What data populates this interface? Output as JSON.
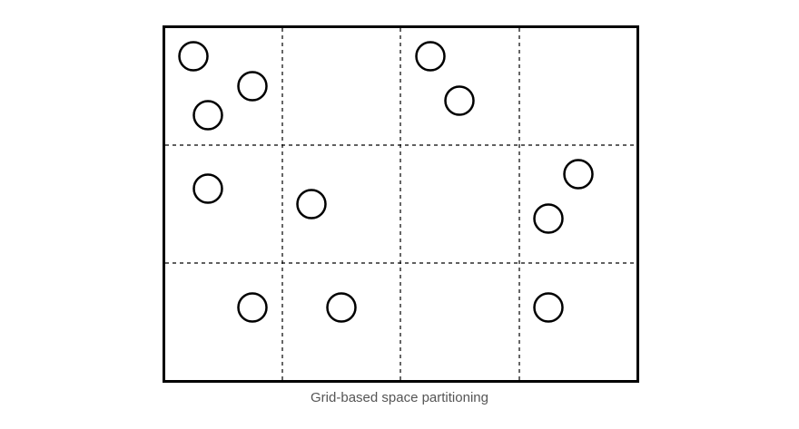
{
  "caption": "Grid-based space partitioning",
  "grid": {
    "rows": 3,
    "columns": 4
  },
  "objects": [
    {
      "cell": "r1c1",
      "count": 3
    },
    {
      "cell": "r1c3",
      "count": 2
    },
    {
      "cell": "r2c1",
      "count": 1
    },
    {
      "cell": "r2c2",
      "count": 1
    },
    {
      "cell": "r2c4",
      "count": 2
    },
    {
      "cell": "r3c1",
      "count": 1
    },
    {
      "cell": "r3c2",
      "count": 1
    },
    {
      "cell": "r3c4",
      "count": 1
    }
  ],
  "colors": {
    "stroke": "#000000",
    "caption": "#555555",
    "background": "#ffffff"
  }
}
